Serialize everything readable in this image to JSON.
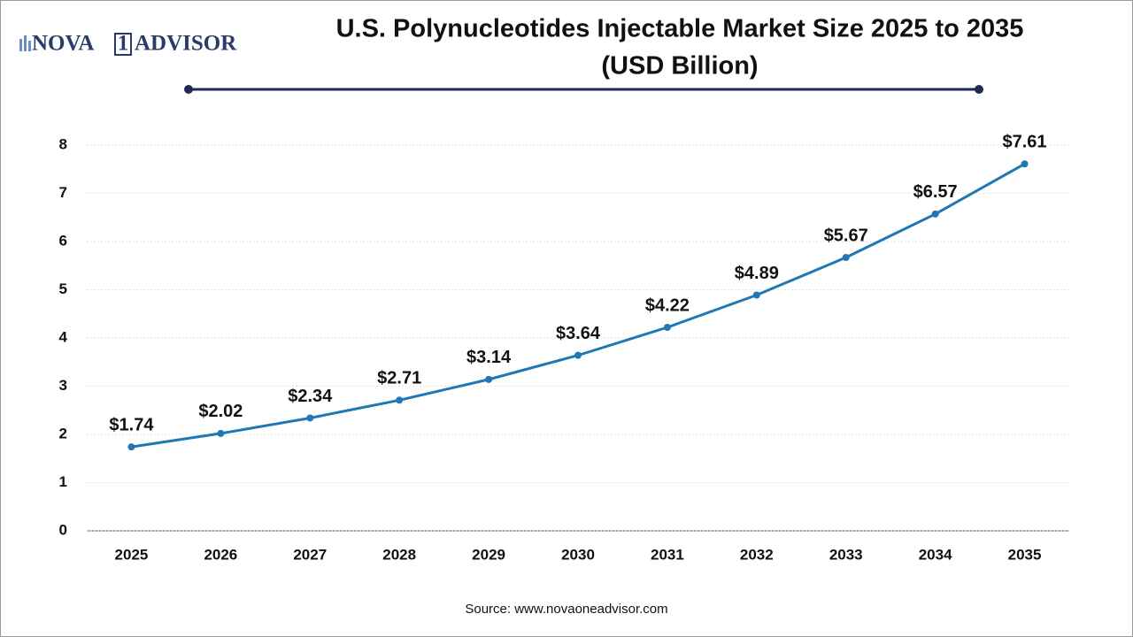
{
  "logo": {
    "parts": [
      "NOVA",
      "1",
      "ADVISOR"
    ]
  },
  "chart_data": {
    "type": "line",
    "title": "U.S. Polynucleotides Injectable Market Size 2025 to 2035",
    "subtitle": "(USD Billion)",
    "categories": [
      "2025",
      "2026",
      "2027",
      "2028",
      "2029",
      "2030",
      "2031",
      "2032",
      "2033",
      "2034",
      "2035"
    ],
    "values": [
      1.74,
      2.02,
      2.34,
      2.71,
      3.14,
      3.64,
      4.22,
      4.89,
      5.67,
      6.57,
      7.61
    ],
    "value_labels": [
      "$1.74",
      "$2.02",
      "$2.34",
      "$2.71",
      "$3.14",
      "$3.64",
      "$4.22",
      "$4.89",
      "$5.67",
      "$6.57",
      "$7.61"
    ],
    "color": "#1f77b4",
    "ylim": [
      0,
      8
    ],
    "yticks": [
      0,
      1,
      2,
      3,
      4,
      5,
      6,
      7,
      8
    ],
    "grid": true,
    "source": "Source: www.novaoneadvisor.com"
  }
}
